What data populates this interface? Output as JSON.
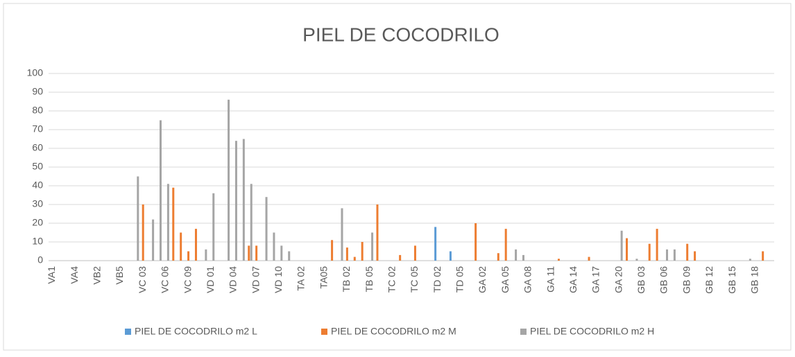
{
  "chart_data": {
    "type": "bar",
    "title": "PIEL DE COCODRILO",
    "categories": [
      "VA1",
      null,
      null,
      "VA4",
      null,
      null,
      "VB2",
      null,
      null,
      "VB5",
      null,
      null,
      "VC 03",
      null,
      null,
      "VC 06",
      null,
      null,
      "VC 09",
      null,
      null,
      "VD 01",
      null,
      null,
      "VD 04",
      null,
      null,
      "VD 07",
      null,
      null,
      "VD 10",
      null,
      null,
      "TA 02",
      null,
      null,
      "TA05",
      null,
      null,
      "TB 02",
      null,
      null,
      "TB 05",
      null,
      null,
      "TC 02",
      null,
      null,
      "TC 05",
      null,
      null,
      "TD 02",
      null,
      null,
      "TD 05",
      null,
      null,
      "GA 02",
      null,
      null,
      "GA 05",
      null,
      null,
      "GA 08",
      null,
      null,
      "GA 11",
      null,
      null,
      "GA 14",
      null,
      null,
      "GA 17",
      null,
      null,
      "GA 20",
      null,
      null,
      "GB 03",
      null,
      null,
      "GB 06",
      null,
      null,
      "GB 09",
      null,
      null,
      "GB 12",
      null,
      null,
      "GB 15",
      null,
      null,
      "GB 18",
      null,
      null
    ],
    "series": [
      {
        "name": "PIEL DE COCODRILO m2 L",
        "color": "#5b9bd5",
        "values": [
          null,
          null,
          null,
          null,
          null,
          null,
          null,
          null,
          null,
          null,
          null,
          null,
          null,
          null,
          null,
          null,
          null,
          null,
          null,
          null,
          null,
          null,
          null,
          null,
          null,
          null,
          null,
          null,
          null,
          null,
          null,
          null,
          null,
          null,
          null,
          null,
          null,
          null,
          null,
          null,
          null,
          null,
          null,
          null,
          null,
          null,
          null,
          null,
          null,
          null,
          null,
          18,
          null,
          5,
          null,
          null,
          null,
          null,
          null,
          null,
          null,
          null,
          null,
          null,
          null,
          null,
          null,
          null,
          null,
          null,
          null,
          null,
          null,
          null,
          null,
          null,
          null,
          null,
          null,
          null,
          null,
          null,
          null,
          null,
          null,
          null,
          null,
          null,
          null,
          null,
          null,
          null,
          null,
          null,
          null,
          null
        ]
      },
      {
        "name": "PIEL DE COCODRILO m2 M",
        "color": "#ed7d31",
        "values": [
          null,
          null,
          null,
          null,
          null,
          null,
          null,
          null,
          null,
          null,
          null,
          null,
          30,
          null,
          null,
          null,
          39,
          15,
          5,
          17,
          null,
          null,
          null,
          null,
          null,
          null,
          8,
          8,
          null,
          null,
          null,
          null,
          null,
          null,
          null,
          null,
          null,
          11,
          null,
          7,
          2,
          10,
          null,
          30,
          null,
          null,
          3,
          null,
          8,
          null,
          null,
          null,
          null,
          null,
          null,
          null,
          20,
          null,
          null,
          4,
          17,
          null,
          null,
          null,
          null,
          null,
          null,
          1,
          null,
          null,
          null,
          2,
          null,
          null,
          null,
          null,
          12,
          null,
          null,
          9,
          17,
          null,
          null,
          null,
          9,
          5,
          null,
          null,
          null,
          null,
          null,
          null,
          null,
          null,
          5,
          null
        ]
      },
      {
        "name": "PIEL DE COCODRILO m2 H",
        "color": "#a5a5a5",
        "values": [
          null,
          null,
          null,
          null,
          null,
          null,
          null,
          null,
          null,
          null,
          null,
          45,
          null,
          22,
          75,
          41,
          null,
          null,
          null,
          null,
          6,
          36,
          null,
          86,
          64,
          65,
          41,
          null,
          34,
          15,
          8,
          5,
          null,
          null,
          null,
          null,
          null,
          null,
          28,
          null,
          null,
          null,
          15,
          null,
          null,
          null,
          null,
          null,
          null,
          null,
          null,
          null,
          null,
          null,
          null,
          null,
          null,
          null,
          null,
          null,
          null,
          6,
          3,
          null,
          null,
          null,
          null,
          null,
          null,
          null,
          null,
          null,
          null,
          null,
          null,
          16,
          null,
          1,
          null,
          null,
          null,
          6,
          6,
          null,
          null,
          null,
          null,
          null,
          null,
          null,
          null,
          null,
          1,
          null,
          null,
          null
        ]
      }
    ],
    "ylim": [
      0,
      100
    ],
    "yticks": [
      0,
      10,
      20,
      30,
      40,
      50,
      60,
      70,
      80,
      90,
      100
    ],
    "grid": true
  }
}
